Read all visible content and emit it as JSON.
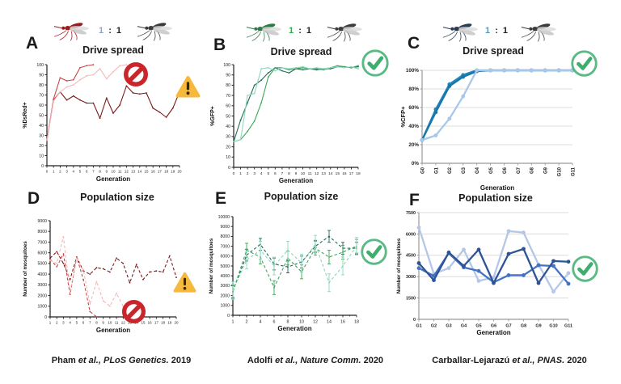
{
  "columns": [
    {
      "top_letter": "A",
      "bottom_letter": "D",
      "top_title": "Drive spread",
      "bottom_title": "Population size",
      "ratio_left": "1",
      "ratio_colon": ":",
      "ratio_right": "1",
      "ratio_left_color": "#8ba6c9",
      "drive_color": "#9e1b1b",
      "wild_color": "#3c3c3c",
      "top_icons": [
        "prohibited",
        "warning"
      ],
      "bottom_icons": [
        "warning",
        "prohibited"
      ],
      "citation": {
        "author": "Pham ",
        "etal": "et al., ",
        "journal": "PLoS Genetics. ",
        "year": " 2019"
      }
    },
    {
      "top_letter": "B",
      "bottom_letter": "E",
      "top_title": "Drive spread",
      "bottom_title": "Population size",
      "ratio_left": "1",
      "ratio_colon": ":",
      "ratio_right": "1",
      "ratio_left_color": "#3aa757",
      "drive_color": "#2d7a45",
      "wild_color": "#3c3c3c",
      "top_icons": [
        "check"
      ],
      "bottom_icons": [
        "check"
      ],
      "citation": {
        "author": "Adolfi ",
        "etal": "et al., ",
        "journal": "Nature Comm. ",
        "year": " 2020"
      }
    },
    {
      "top_letter": "C",
      "bottom_letter": "F",
      "top_title": "Drive spread",
      "bottom_title": "Population size",
      "ratio_left": "1",
      "ratio_colon": ":",
      "ratio_right": "1",
      "ratio_left_color": "#4a9bd1",
      "drive_color": "#2b3a55",
      "wild_color": "#3c3c3c",
      "top_icons": [
        "check"
      ],
      "bottom_icons": [
        "check"
      ],
      "citation": {
        "author": "Carballar-Lejarazú ",
        "etal": "et al., ",
        "journal": "PNAS. ",
        "year": " 2020"
      }
    }
  ],
  "icon_colors": {
    "prohibited": "#c9252b",
    "warning": "#f6b93b",
    "warning_mark": "#33290f",
    "check": "#3dae6e"
  },
  "chart_data": [
    {
      "id": "A",
      "type": "line",
      "title": "Drive spread",
      "xlabel": "Generation",
      "ylabel": "%DsRed+",
      "x_labels": [
        "0",
        "1",
        "2",
        "3",
        "4",
        "5",
        "6",
        "7",
        "8",
        "9",
        "10",
        "11",
        "12",
        "13",
        "14",
        "15",
        "16",
        "17",
        "18",
        "19",
        "20"
      ],
      "ylim": [
        0,
        100
      ],
      "yticks": [
        0,
        10,
        20,
        30,
        40,
        50,
        60,
        70,
        80,
        90,
        100
      ],
      "ytick_suffix": "",
      "grid": false,
      "legend": "none",
      "series": [
        {
          "name": "cage-dark-red",
          "color": "#7b1a1a",
          "width": 1.1,
          "marker": "dot",
          "values": [
            25,
            65,
            73,
            65,
            69,
            65,
            62,
            62,
            47,
            67,
            52,
            60,
            79,
            72,
            71,
            72,
            57,
            53,
            48,
            57,
            73
          ]
        },
        {
          "name": "cage-medium-red",
          "color": "#cc4444",
          "width": 1.1,
          "marker": "dot",
          "values": [
            25,
            66,
            87,
            84,
            85,
            97,
            99,
            100
          ]
        },
        {
          "name": "cage-light-pink",
          "color": "#efb9b9",
          "width": 1.1,
          "marker": "dot",
          "values": [
            25,
            64,
            73,
            78,
            80,
            85,
            89,
            90,
            96,
            86,
            93,
            99,
            100
          ]
        }
      ]
    },
    {
      "id": "B",
      "type": "line",
      "title": "Drive spread",
      "xlabel": "Generation",
      "ylabel": "%GFP+",
      "x_labels": [
        "0",
        "1",
        "2",
        "3",
        "4",
        "5",
        "6",
        "7",
        "8",
        "9",
        "10",
        "11",
        "12",
        "13",
        "14",
        "15",
        "16",
        "17",
        "18"
      ],
      "ylim": [
        0,
        100
      ],
      "yticks": [
        0,
        10,
        20,
        30,
        40,
        50,
        60,
        70,
        80,
        90,
        100
      ],
      "ytick_suffix": "",
      "grid": false,
      "legend": "none",
      "series": [
        {
          "name": "cage-dark-teal",
          "color": "#20695c",
          "width": 1.1,
          "marker": "dot",
          "values": [
            25,
            46,
            63,
            80,
            85,
            92,
            97,
            94,
            92,
            96,
            95,
            96,
            95,
            96,
            96,
            98,
            98,
            97,
            98
          ]
        },
        {
          "name": "cage-medium-green",
          "color": "#3aa757",
          "width": 1.1,
          "marker": "dot",
          "values": [
            25,
            27,
            35,
            45,
            63,
            88,
            97,
            97,
            95,
            96,
            97,
            96,
            96,
            95,
            97,
            99,
            98,
            97,
            99
          ]
        },
        {
          "name": "cage-light-green",
          "color": "#8ed7bd",
          "width": 1.1,
          "marker": "dot",
          "values": [
            25,
            27,
            70,
            72,
            96,
            97,
            94,
            97,
            96,
            97,
            98,
            96,
            97,
            96,
            97,
            98,
            97,
            98,
            96
          ]
        }
      ]
    },
    {
      "id": "C",
      "type": "line",
      "title": "Drive spread",
      "xlabel": "Generation",
      "ylabel": "%CFP+",
      "x_labels": [
        "G0",
        "G1",
        "G2",
        "G3",
        "G4",
        "G5",
        "G6",
        "G7",
        "G8",
        "G9",
        "G10",
        "G11"
      ],
      "ylim": [
        0,
        100
      ],
      "yticks": [
        0,
        20,
        40,
        60,
        80,
        100
      ],
      "ytick_suffix": "%",
      "grid": true,
      "legend": "none",
      "series": [
        {
          "name": "cage-dark-blue-1",
          "color": "#2187bd",
          "width": 2.3,
          "marker": "circle",
          "values": [
            25,
            58,
            85,
            95,
            100,
            100,
            100,
            100,
            100,
            100,
            100,
            100
          ]
        },
        {
          "name": "cage-dark-blue-2",
          "color": "#1877a8",
          "width": 2.3,
          "marker": "circle",
          "values": [
            25,
            55,
            83,
            93,
            99,
            100,
            100,
            100,
            100,
            100,
            100,
            100
          ]
        },
        {
          "name": "cage-light-blue",
          "color": "#a9c7e8",
          "width": 2.3,
          "marker": "circle",
          "values": [
            25,
            30,
            48,
            72,
            100,
            100,
            100,
            100,
            100,
            100,
            100,
            100
          ]
        }
      ]
    },
    {
      "id": "D",
      "type": "line",
      "title": "Population size",
      "xlabel": "Generation",
      "ylabel": "Number of mosquitoes",
      "x_labels": [
        "1",
        "2",
        "3",
        "4",
        "5",
        "6",
        "7",
        "8",
        "9",
        "10",
        "11",
        "12",
        "13",
        "14",
        "15",
        "16",
        "17",
        "18",
        "19",
        "20"
      ],
      "ylim": [
        0,
        9000
      ],
      "yticks": [
        0,
        1000,
        2000,
        3000,
        4000,
        5000,
        6000,
        7000,
        8000,
        9000
      ],
      "ytick_suffix": "",
      "grid": false,
      "legend": "none",
      "series": [
        {
          "name": "cage-dark-red",
          "color": "#7b1a1a",
          "width": 1.1,
          "marker": "dot",
          "dash": true,
          "values": [
            5500,
            6100,
            5000,
            3500,
            5600,
            4300,
            4000,
            4600,
            4500,
            4200,
            5500,
            5000,
            3200,
            4900,
            3500,
            4200,
            4300,
            4200,
            5700,
            3700
          ]
        },
        {
          "name": "cage-medium-red",
          "color": "#cc4444",
          "width": 1.1,
          "marker": "dot",
          "dash": true,
          "values": [
            5400,
            4700,
            5900,
            2100,
            5600,
            3500,
            500,
            0
          ]
        },
        {
          "name": "cage-light-pink",
          "color": "#efb9b9",
          "width": 1.1,
          "marker": "dot",
          "dash": true,
          "values": [
            5300,
            5000,
            7500,
            2300,
            5500,
            4400,
            1200,
            3300,
            1500,
            1000,
            2200,
            1000,
            0
          ]
        }
      ]
    },
    {
      "id": "E",
      "type": "line",
      "title": "Population size",
      "xlabel": "Generation",
      "ylabel": "Number of mosquitoes",
      "x_labels": [
        "1",
        "2",
        "4",
        "6",
        "8",
        "10",
        "12",
        "14",
        "16",
        "18"
      ],
      "minor_ticks": true,
      "ylim": [
        0,
        10000
      ],
      "yticks": [
        0,
        1000,
        2000,
        3000,
        4000,
        5000,
        6000,
        7000,
        8000,
        9000,
        10000
      ],
      "ytick_suffix": "",
      "grid": false,
      "legend": "none",
      "series": [
        {
          "name": "cage-dark-green",
          "color": "#20695c",
          "width": 1.1,
          "marker": "dot",
          "dash": true,
          "err": 600,
          "values": [
            2400,
            6100,
            7200,
            5200,
            4900,
            5400,
            7000,
            8000,
            6800,
            6800
          ]
        },
        {
          "name": "cage-medium-green",
          "color": "#3aa757",
          "width": 1.1,
          "marker": "dot",
          "dash": true,
          "err": 700,
          "values": [
            2400,
            6600,
            5900,
            2800,
            5800,
            4400,
            6800,
            5900,
            6400,
            7000
          ]
        },
        {
          "name": "cage-light-green",
          "color": "#8ed7bd",
          "width": 1.1,
          "marker": "dot",
          "dash": true,
          "err": 900,
          "values": [
            2500,
            5600,
            6600,
            5000,
            6600,
            5300,
            7200,
            3300,
            5000,
            7000
          ]
        }
      ]
    },
    {
      "id": "F",
      "type": "line",
      "title": "Population size",
      "xlabel": "Generation",
      "ylabel": "Number of mosquitoes",
      "x_labels": [
        "G1",
        "G2",
        "G3",
        "G4",
        "G5",
        "G6",
        "G7",
        "G8",
        "G9",
        "G10",
        "G11"
      ],
      "ylim": [
        0,
        7500
      ],
      "yticks": [
        0,
        1500,
        3000,
        4500,
        6000,
        7500
      ],
      "ytick_suffix": "",
      "grid": true,
      "legend": "none",
      "series": [
        {
          "name": "cage-light-periwinkle",
          "color": "#b4c7e7",
          "width": 2.3,
          "marker": "circle",
          "values": [
            6450,
            3200,
            3600,
            4900,
            2700,
            2950,
            6200,
            6100,
            3850,
            1950,
            3250
          ]
        },
        {
          "name": "cage-medium-blue",
          "color": "#4472c4",
          "width": 2.3,
          "marker": "circle",
          "values": [
            3600,
            3050,
            4650,
            3650,
            3400,
            2600,
            3100,
            3100,
            3800,
            3750,
            2500
          ]
        },
        {
          "name": "cage-navy-blue",
          "color": "#2f5496",
          "width": 2.3,
          "marker": "circle",
          "values": [
            3950,
            2750,
            4700,
            3750,
            4900,
            2550,
            4600,
            4950,
            2550,
            4100,
            4050
          ]
        }
      ]
    }
  ]
}
